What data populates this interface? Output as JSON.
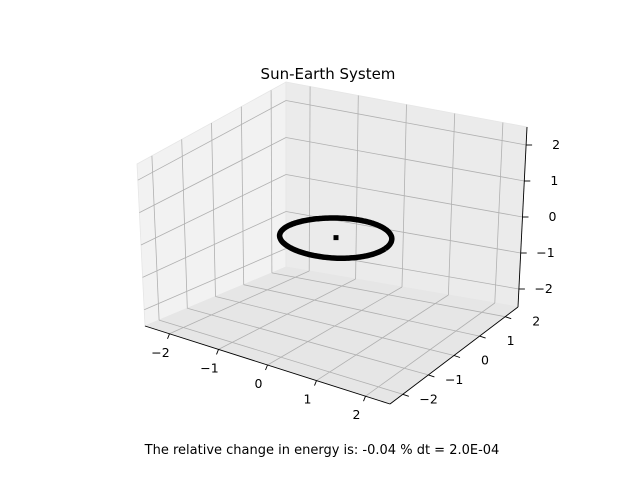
{
  "chart_data": {
    "type": "scatter",
    "projection": "3d",
    "title": "Sun-Earth System",
    "xlabel": "",
    "ylabel": "",
    "zlabel": "",
    "xlim": [
      -2.5,
      2.5
    ],
    "ylim": [
      -2.5,
      2.5
    ],
    "zlim": [
      -2.5,
      2.5
    ],
    "xticks": [
      "−2",
      "−1",
      "0",
      "1",
      "2"
    ],
    "yticks": [
      "−2",
      "−1",
      "0",
      "1",
      "2"
    ],
    "zticks": [
      "−2",
      "−1",
      "0",
      "1",
      "2"
    ],
    "grid": true,
    "legend": "none",
    "series": [
      {
        "marker": "point",
        "color": "#000000",
        "shape": "circular orbit",
        "center": {
          "x": 0,
          "y": 0,
          "z": 0
        },
        "radius": 1.0
      },
      {
        "marker": "point",
        "color": "#000000",
        "points": [
          {
            "x": 0,
            "y": 0,
            "z": 0
          }
        ]
      }
    ]
  },
  "caption": "The relative change in energy is: -0.04 %   dt = 2.0E-04"
}
